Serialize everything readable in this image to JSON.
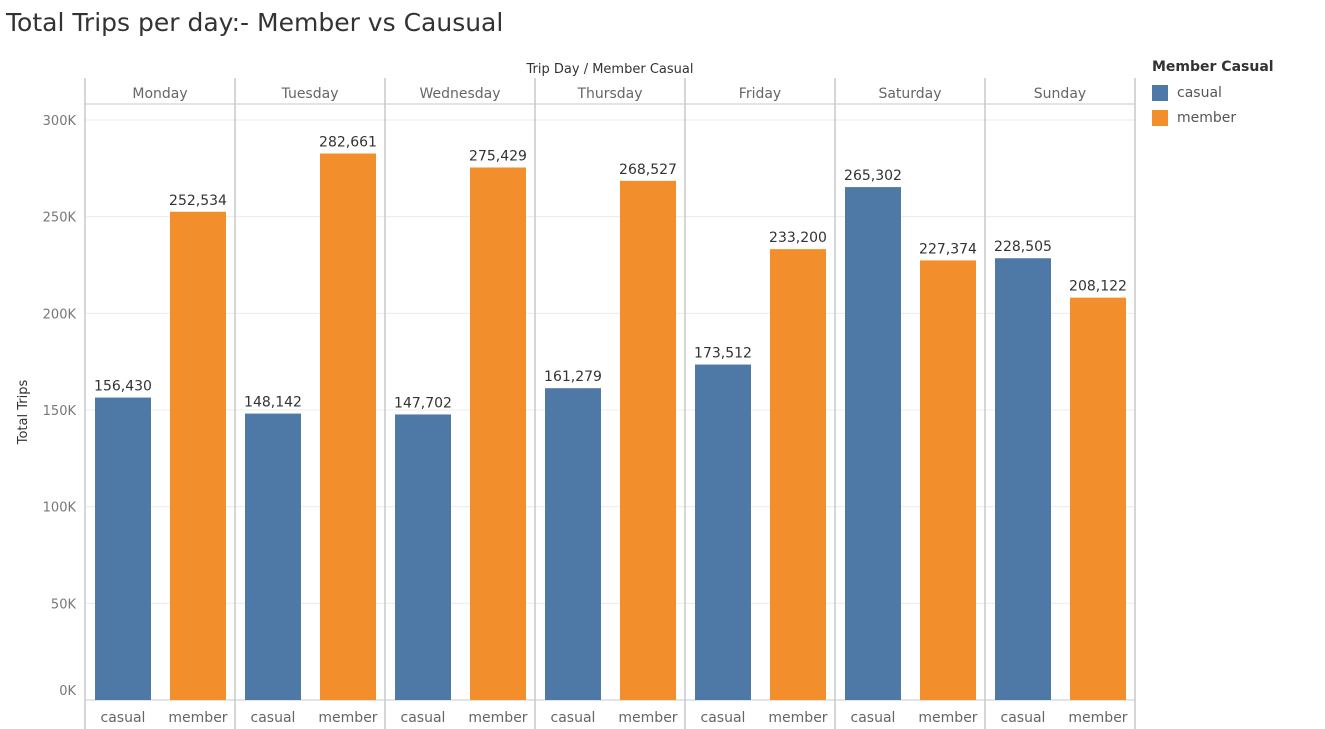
{
  "page_title": "Total Trips per day:- Member vs Causual",
  "chart_data": {
    "type": "bar",
    "title": "Total Trips per day:- Member vs Causual",
    "column_header": "Trip Day  /  Member Casual",
    "ylabel": "Total Trips",
    "ylim": [
      0,
      300000
    ],
    "y_ticks": [
      {
        "value": 0,
        "label": "0K"
      },
      {
        "value": 50000,
        "label": "50K"
      },
      {
        "value": 100000,
        "label": "100K"
      },
      {
        "value": 150000,
        "label": "150K"
      },
      {
        "value": 200000,
        "label": "200K"
      },
      {
        "value": 250000,
        "label": "250K"
      },
      {
        "value": 300000,
        "label": "300K"
      }
    ],
    "grid": true,
    "categories": [
      "Monday",
      "Tuesday",
      "Wednesday",
      "Thursday",
      "Friday",
      "Saturday",
      "Sunday"
    ],
    "sub_categories": [
      "casual",
      "member"
    ],
    "series": [
      {
        "name": "casual",
        "color": "#4e79a7",
        "values": [
          156430,
          148142,
          147702,
          161279,
          173512,
          265302,
          228505
        ],
        "value_labels": [
          "156,430",
          "148,142",
          "147,702",
          "161,279",
          "173,512",
          "265,302",
          "228,505"
        ]
      },
      {
        "name": "member",
        "color": "#f28e2b",
        "values": [
          252534,
          282661,
          275429,
          268527,
          233200,
          227374,
          208122
        ],
        "value_labels": [
          "252,534",
          "282,661",
          "275,429",
          "268,527",
          "233,200",
          "227,374",
          "208,122"
        ]
      }
    ],
    "legend": {
      "title": "Member Casual",
      "position": "right",
      "items": [
        {
          "label": "casual",
          "color": "#4e79a7"
        },
        {
          "label": "member",
          "color": "#f28e2b"
        }
      ]
    }
  }
}
